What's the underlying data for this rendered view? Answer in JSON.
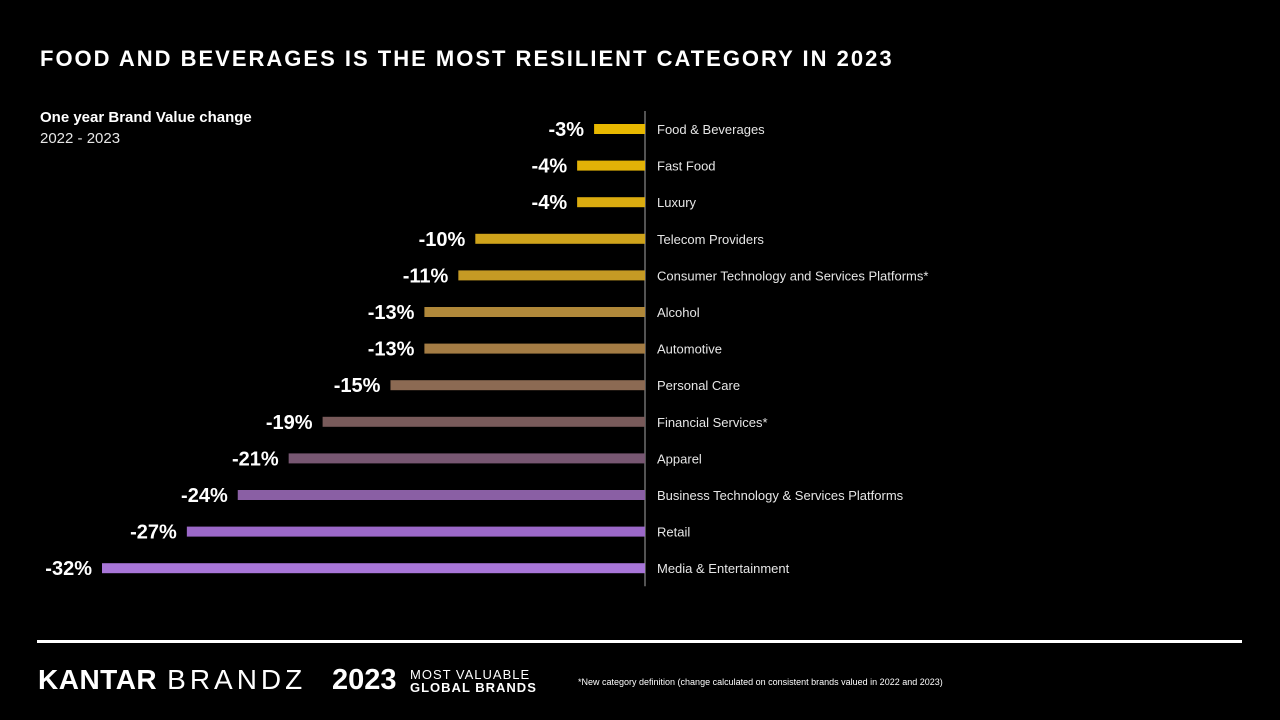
{
  "header": {
    "title": "FOOD AND BEVERAGES IS THE MOST RESILIENT CATEGORY IN 2023",
    "subtitle": "One year Brand Value change",
    "subtitle_range": "2022 - 2023"
  },
  "chart_data": {
    "type": "bar",
    "orientation": "horizontal",
    "categories": [
      "Food & Beverages",
      "Fast Food",
      "Luxury",
      "Telecom Providers",
      "Consumer Technology and Services Platforms*",
      "Alcohol",
      "Automotive",
      "Personal Care",
      "Financial Services*",
      "Apparel",
      "Business Technology & Services Platforms",
      "Retail",
      "Media & Entertainment"
    ],
    "values": [
      -3,
      -4,
      -4,
      -10,
      -11,
      -13,
      -13,
      -15,
      -19,
      -21,
      -24,
      -27,
      -32
    ],
    "value_labels": [
      "-3%",
      "-4%",
      "-4%",
      "-10%",
      "-11%",
      "-13%",
      "-13%",
      "-15%",
      "-19%",
      "-21%",
      "-24%",
      "-27%",
      "-32%"
    ],
    "colors": [
      "#e8b800",
      "#e2b207",
      "#dbac10",
      "#cfa31b",
      "#c59a24",
      "#b0883a",
      "#a47c44",
      "#8c6a53",
      "#785a5a",
      "#775772",
      "#8a5fa4",
      "#9b68c8",
      "#a876d8"
    ],
    "xlim": [
      -32,
      0
    ],
    "grid": false,
    "legend": "none"
  },
  "footer": {
    "logo_kantar": "KANTAR",
    "logo_brandz": "BRANDZ",
    "year": "2023",
    "mvgb_line1": "MOST VALUABLE",
    "mvgb_line2": "GLOBAL BRANDS",
    "footnote": "*New category definition (change calculated on consistent brands valued in 2022 and 2023)"
  }
}
